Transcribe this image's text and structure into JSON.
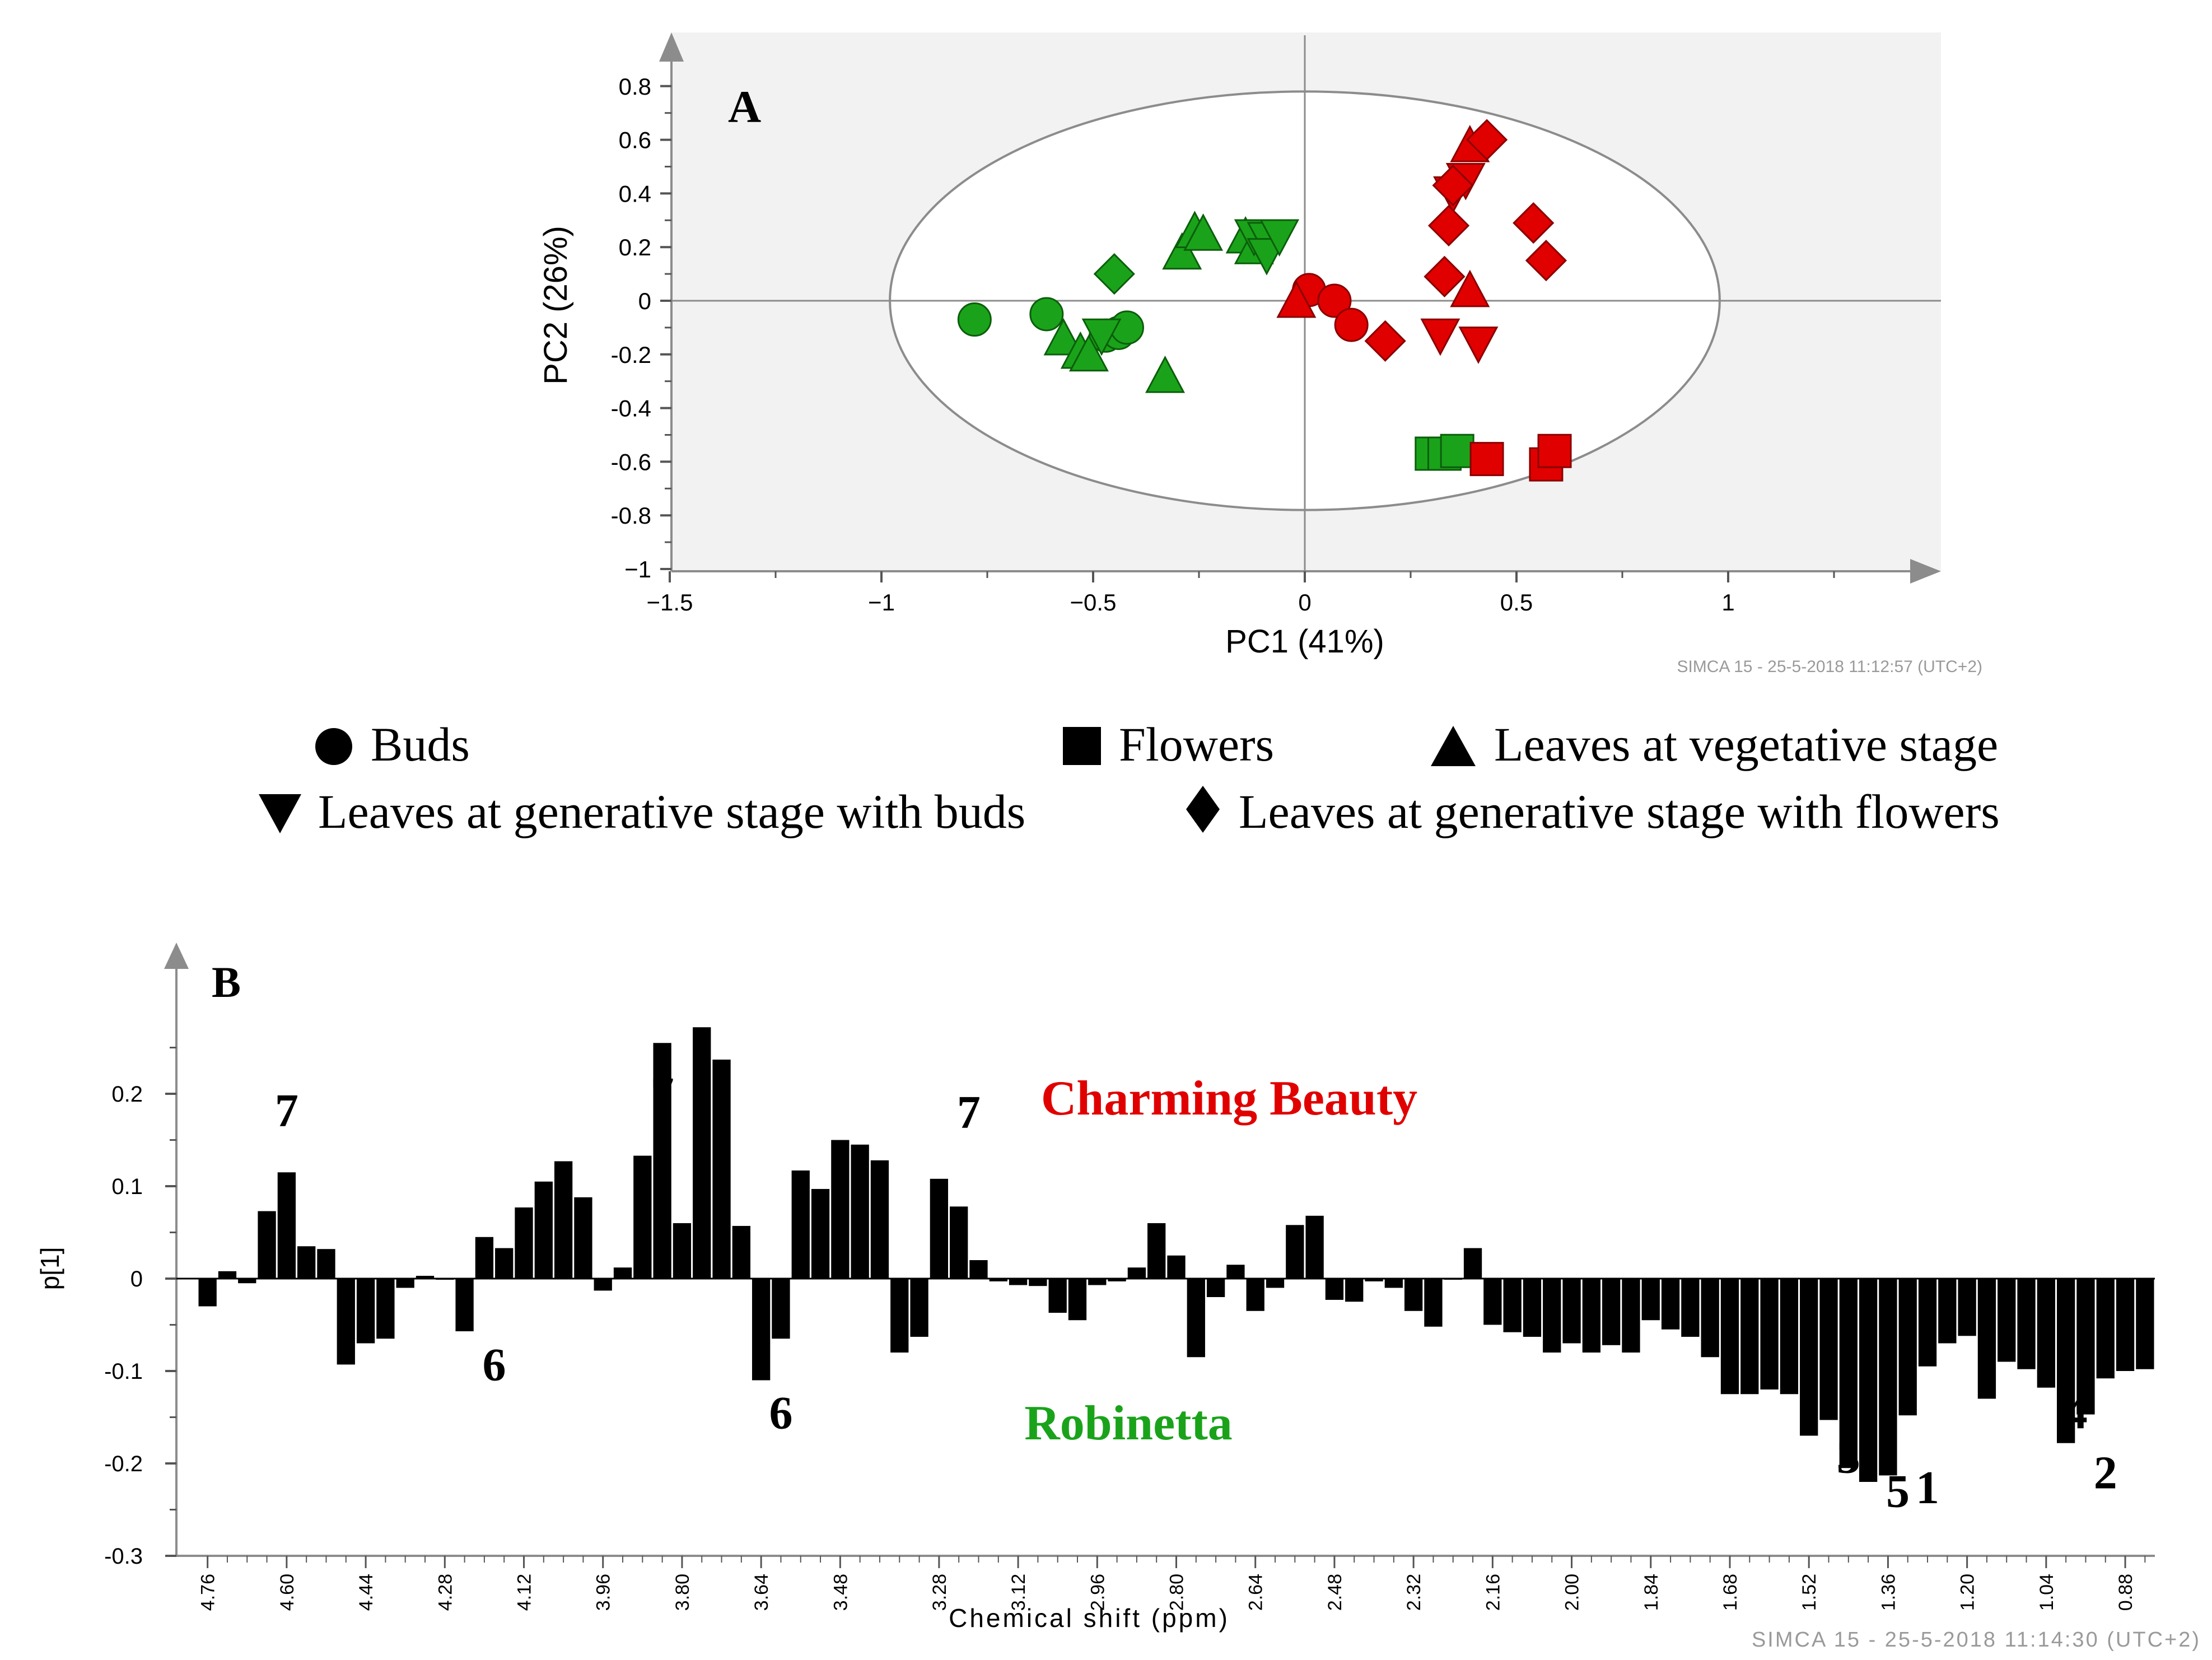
{
  "colors": {
    "cultivar_a": "#e00000",
    "cultivar_b": "#1aa31a",
    "bars": "#000000",
    "plot_bg": "#f2f2f2",
    "axis": "#8c8c8c"
  },
  "panel_a": {
    "label": "A",
    "xlabel": "PC1 (41%)",
    "ylabel": "PC2 (26%)",
    "footer": "SIMCA 15 - 25-5-2018 11:12:57 (UTC+2)",
    "chart_data": {
      "type": "scatter",
      "xlim": [
        -1.5,
        1.5
      ],
      "ylim": [
        -1,
        0.9
      ],
      "x_ticks": [
        -1.5,
        -1,
        -0.5,
        0,
        0.5,
        1
      ],
      "x_tick_labels": [
        "−1.5",
        "−1",
        "−0.5",
        "0",
        "0.5",
        "1"
      ],
      "y_ticks": [
        0.8,
        0.6,
        0.4,
        0.2,
        0,
        -0.2,
        -0.4,
        -0.6,
        -0.8,
        -1
      ],
      "y_tick_labels": [
        "0.8",
        "0.6",
        "0.4",
        "0.2",
        "0",
        "-0.2",
        "-0.4",
        "-0.6",
        "-0.8",
        "−1"
      ],
      "ellipse": {
        "rx": 0.98,
        "ry": 0.78
      },
      "points": [
        {
          "s": "circle",
          "c": "green",
          "x": -0.78,
          "y": -0.07
        },
        {
          "s": "circle",
          "c": "green",
          "x": -0.61,
          "y": -0.05
        },
        {
          "s": "circle",
          "c": "green",
          "x": -0.47,
          "y": -0.13
        },
        {
          "s": "circle",
          "c": "green",
          "x": -0.44,
          "y": -0.12
        },
        {
          "s": "circle",
          "c": "green",
          "x": -0.42,
          "y": -0.1
        },
        {
          "s": "circle",
          "c": "red",
          "x": 0.01,
          "y": 0.04
        },
        {
          "s": "circle",
          "c": "red",
          "x": 0.07,
          "y": 0.0
        },
        {
          "s": "circle",
          "c": "red",
          "x": 0.11,
          "y": -0.09
        },
        {
          "s": "square",
          "c": "green",
          "x": 0.3,
          "y": -0.57
        },
        {
          "s": "square",
          "c": "green",
          "x": 0.33,
          "y": -0.57
        },
        {
          "s": "square",
          "c": "green",
          "x": 0.36,
          "y": -0.56
        },
        {
          "s": "square",
          "c": "red",
          "x": 0.43,
          "y": -0.59
        },
        {
          "s": "square",
          "c": "red",
          "x": 0.57,
          "y": -0.61
        },
        {
          "s": "square",
          "c": "red",
          "x": 0.59,
          "y": -0.56
        },
        {
          "s": "tri_up",
          "c": "green",
          "x": -0.57,
          "y": -0.14
        },
        {
          "s": "tri_up",
          "c": "green",
          "x": -0.53,
          "y": -0.19
        },
        {
          "s": "tri_up",
          "c": "green",
          "x": -0.51,
          "y": -0.2
        },
        {
          "s": "tri_up",
          "c": "green",
          "x": -0.33,
          "y": -0.28
        },
        {
          "s": "tri_up",
          "c": "green",
          "x": -0.29,
          "y": 0.18
        },
        {
          "s": "tri_up",
          "c": "green",
          "x": -0.26,
          "y": 0.26
        },
        {
          "s": "tri_up",
          "c": "green",
          "x": -0.24,
          "y": 0.25
        },
        {
          "s": "tri_up",
          "c": "green",
          "x": -0.14,
          "y": 0.24
        },
        {
          "s": "tri_up",
          "c": "green",
          "x": -0.12,
          "y": 0.2
        },
        {
          "s": "tri_up",
          "c": "red",
          "x": -0.02,
          "y": 0.0
        },
        {
          "s": "tri_up",
          "c": "red",
          "x": 0.39,
          "y": 0.04
        },
        {
          "s": "tri_up",
          "c": "red",
          "x": 0.39,
          "y": 0.58
        },
        {
          "s": "tri_down",
          "c": "green",
          "x": -0.48,
          "y": -0.13
        },
        {
          "s": "tri_down",
          "c": "green",
          "x": -0.12,
          "y": 0.24
        },
        {
          "s": "tri_down",
          "c": "green",
          "x": -0.09,
          "y": 0.23
        },
        {
          "s": "tri_down",
          "c": "green",
          "x": -0.09,
          "y": 0.17
        },
        {
          "s": "tri_down",
          "c": "green",
          "x": -0.06,
          "y": 0.24
        },
        {
          "s": "tri_down",
          "c": "red",
          "x": 0.32,
          "y": -0.13
        },
        {
          "s": "tri_down",
          "c": "red",
          "x": 0.35,
          "y": 0.4
        },
        {
          "s": "tri_down",
          "c": "red",
          "x": 0.38,
          "y": 0.45
        },
        {
          "s": "tri_down",
          "c": "red",
          "x": 0.41,
          "y": -0.16
        },
        {
          "s": "diamond",
          "c": "green",
          "x": -0.45,
          "y": 0.1
        },
        {
          "s": "diamond",
          "c": "red",
          "x": 0.19,
          "y": -0.15
        },
        {
          "s": "diamond",
          "c": "red",
          "x": 0.33,
          "y": 0.09
        },
        {
          "s": "diamond",
          "c": "red",
          "x": 0.34,
          "y": 0.28
        },
        {
          "s": "diamond",
          "c": "red",
          "x": 0.35,
          "y": 0.43
        },
        {
          "s": "diamond",
          "c": "red",
          "x": 0.43,
          "y": 0.6
        },
        {
          "s": "diamond",
          "c": "red",
          "x": 0.54,
          "y": 0.29
        },
        {
          "s": "diamond",
          "c": "red",
          "x": 0.57,
          "y": 0.15
        }
      ]
    }
  },
  "legend": [
    {
      "s": "circle",
      "label": "Buds"
    },
    {
      "s": "square",
      "label": "Flowers"
    },
    {
      "s": "tri_up",
      "label": "Leaves at vegetative stage"
    },
    {
      "s": "tri_down",
      "label": "Leaves at generative stage with buds"
    },
    {
      "s": "diamond",
      "label": "Leaves at generative stage with flowers"
    }
  ],
  "panel_b": {
    "label": "B",
    "xlabel": "Chemical shift (ppm)",
    "ylabel": "p[1]",
    "footer": "SIMCA 15 - 25-5-2018 11:14:30 (UTC+2)",
    "text_top": "Charming Beauty",
    "text_bottom": "Robinetta",
    "chart_data": {
      "type": "bar",
      "ylim": [
        -0.3,
        0.3
      ],
      "y_ticks": [
        0.2,
        0.1,
        0,
        -0.1,
        -0.2,
        -0.3
      ],
      "y_tick_labels": [
        "0.2",
        "0.1",
        "0",
        "-0.1",
        "-0.2",
        "-0.3"
      ],
      "x_start": 4.76,
      "x_step": 0.04,
      "x_tick_labels": [
        "4.76",
        "4.60",
        "4.44",
        "4.28",
        "4.12",
        "3.96",
        "3.80",
        "3.64",
        "3.48",
        "3.28",
        "3.12",
        "2.96",
        "2.80",
        "2.64",
        "2.48",
        "2.32",
        "2.16",
        "2.00",
        "1.84",
        "1.68",
        "1.52",
        "1.36",
        "1.20",
        "1.04",
        "0.88"
      ],
      "values": [
        -0.03,
        0.008,
        -0.005,
        0.073,
        0.115,
        0.035,
        0.032,
        -0.093,
        -0.07,
        -0.065,
        -0.01,
        0.003,
        0,
        -0.057,
        0.045,
        0.033,
        0.077,
        0.105,
        0.127,
        0.088,
        -0.013,
        0.012,
        0.133,
        0.255,
        0.06,
        0.272,
        0.237,
        0.057,
        -0.11,
        -0.065,
        0.117,
        0.097,
        0.15,
        0.145,
        0.128,
        -0.08,
        -0.063,
        0.108,
        0.078,
        0.02,
        -0.003,
        -0.007,
        -0.008,
        -0.037,
        -0.045,
        -0.007,
        -0.003,
        0.012,
        0.06,
        0.025,
        -0.085,
        -0.02,
        0.015,
        -0.035,
        -0.01,
        0.058,
        0.068,
        -0.023,
        -0.025,
        -0.003,
        -0.01,
        -0.035,
        -0.052,
        0,
        0.033,
        -0.05,
        -0.058,
        -0.063,
        -0.08,
        -0.07,
        -0.08,
        -0.072,
        -0.08,
        -0.045,
        -0.055,
        -0.063,
        -0.085,
        -0.125,
        -0.125,
        -0.12,
        -0.125,
        -0.17,
        -0.153,
        -0.205,
        -0.22,
        -0.213,
        -0.148,
        -0.095,
        -0.07,
        -0.062,
        -0.13,
        -0.09,
        -0.098,
        -0.118,
        -0.178,
        -0.147,
        -0.108,
        -0.1,
        -0.098
      ],
      "annotations": [
        {
          "text": "7",
          "x": 4.6,
          "y": 0.165
        },
        {
          "text": "6",
          "x": 4.18,
          "y": -0.11
        },
        {
          "text": "7",
          "x": 3.84,
          "y": 0.183
        },
        {
          "text": "6",
          "x": 3.6,
          "y": -0.162
        },
        {
          "text": "7",
          "x": 3.22,
          "y": 0.163
        },
        {
          "text": "3",
          "x": 1.44,
          "y": -0.21
        },
        {
          "text": "5",
          "x": 1.34,
          "y": -0.247
        },
        {
          "text": "1",
          "x": 1.28,
          "y": -0.243
        },
        {
          "text": "4",
          "x": 0.98,
          "y": -0.162
        },
        {
          "text": "2",
          "x": 0.92,
          "y": -0.227
        }
      ]
    }
  }
}
